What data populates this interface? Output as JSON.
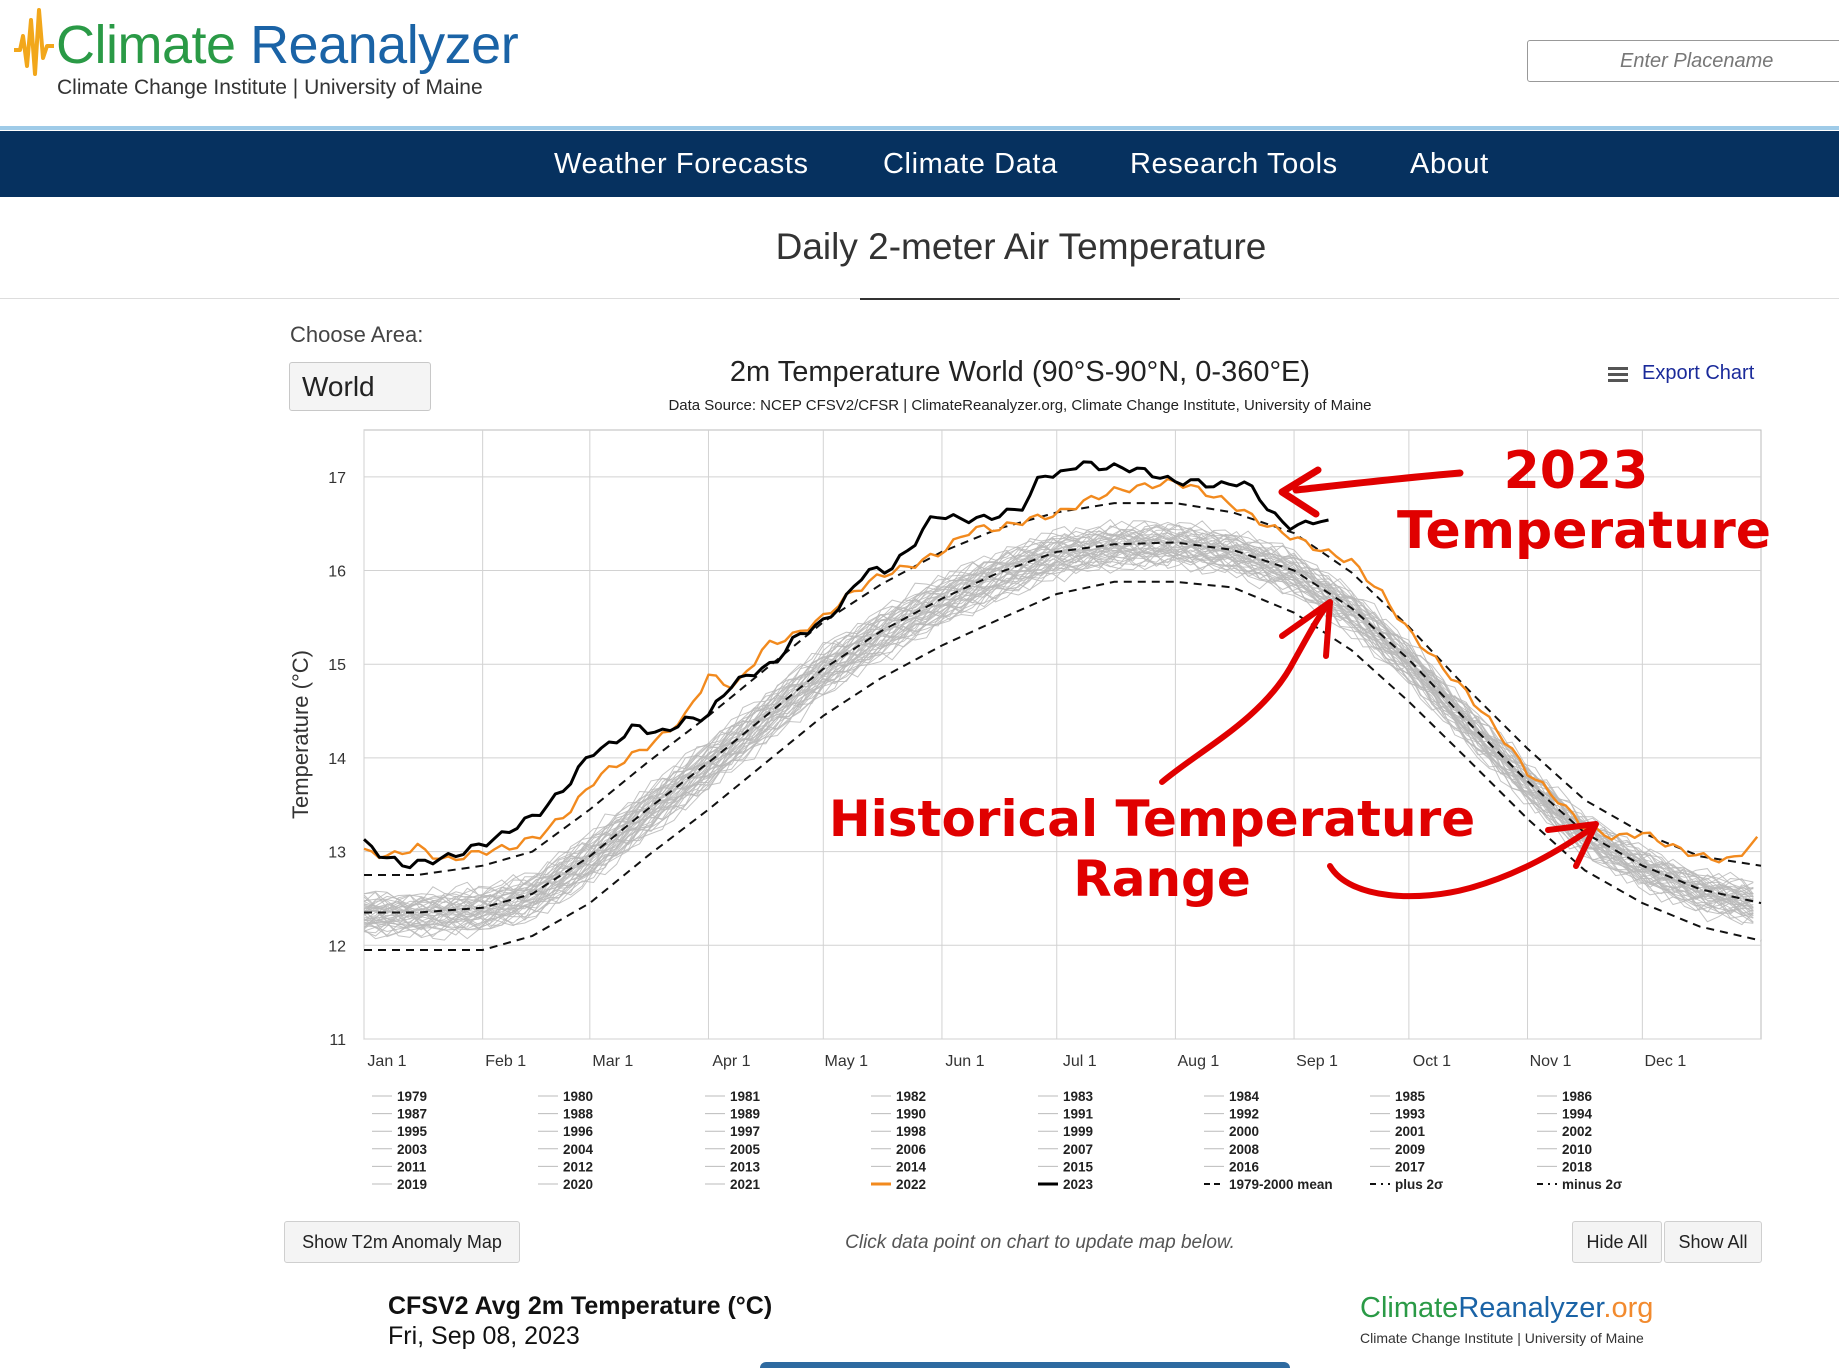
{
  "header": {
    "logo_title_part1": "Climate",
    "logo_title_part2": "Reanalyzer",
    "logo_subtitle": "Climate Change Institute | University of Maine",
    "search_placeholder": "Enter Placename"
  },
  "nav": {
    "items": [
      "Weather Forecasts",
      "Climate Data",
      "Research Tools",
      "About"
    ]
  },
  "page": {
    "title": "Daily 2-meter Air Temperature",
    "choose_area_label": "Choose Area:",
    "area_value": "World",
    "export_label": "Export Chart",
    "show_map_button": "Show T2m Anomaly Map",
    "hint": "Click data point on chart to update map below.",
    "hide_all_button": "Hide All",
    "show_all_button": "Show All",
    "map_title": "CFSV2 Avg 2m Temperature (°C)",
    "map_date": "Fri, Sep 08, 2023",
    "map_logo_part1": "Climate",
    "map_logo_part2": "Reanalyzer",
    "map_logo_part3": ".org",
    "map_logo_subtitle": "Climate Change Institute | University of Maine"
  },
  "colors": {
    "nav_bg": "#06315f",
    "line_2023": "#000000",
    "line_2022": "#f28a1e",
    "history_lines": "#b9b9b9",
    "annotation": "#e00000"
  },
  "annotations": {
    "label_2023_line1": "2023",
    "label_2023_line2": "Temperature",
    "label_hist_line1": "Historical Temperature",
    "label_hist_line2": "Range"
  },
  "chart_data": {
    "type": "line",
    "title": "2m Temperature World (90°S-90°N, 0-360°E)",
    "subtitle": "Data Source: NCEP CFSV2/CFSR | ClimateReanalyzer.org, Climate Change Institute, University of Maine",
    "ylabel": "Temperature (°C)",
    "xlabel": "",
    "ylim": [
      11,
      17.5
    ],
    "yticks": [
      11,
      12,
      13,
      14,
      15,
      16,
      17
    ],
    "xlim": [
      1,
      366
    ],
    "grid": true,
    "months": [
      {
        "label": "Jan 1",
        "day": 1
      },
      {
        "label": "Feb 1",
        "day": 32
      },
      {
        "label": "Mar 1",
        "day": 60
      },
      {
        "label": "Apr 1",
        "day": 91
      },
      {
        "label": "May 1",
        "day": 121
      },
      {
        "label": "Jun 1",
        "day": 152
      },
      {
        "label": "Jul 1",
        "day": 182
      },
      {
        "label": "Aug 1",
        "day": 213
      },
      {
        "label": "Sep 1",
        "day": 244
      },
      {
        "label": "Oct 1",
        "day": 274
      },
      {
        "label": "Nov 1",
        "day": 305
      },
      {
        "label": "Dec 1",
        "day": 335
      }
    ],
    "mean_1979_2000": {
      "x": [
        1,
        15,
        32,
        45,
        60,
        75,
        91,
        106,
        121,
        136,
        152,
        167,
        182,
        197,
        213,
        228,
        244,
        259,
        274,
        289,
        305,
        320,
        335,
        350,
        366
      ],
      "y": [
        12.35,
        12.35,
        12.4,
        12.55,
        12.95,
        13.45,
        13.95,
        14.45,
        14.95,
        15.35,
        15.7,
        15.98,
        16.2,
        16.28,
        16.3,
        16.22,
        16.0,
        15.6,
        15.05,
        14.4,
        13.75,
        13.2,
        12.85,
        12.6,
        12.45
      ]
    },
    "plus_2sigma": {
      "x": [
        1,
        15,
        32,
        45,
        60,
        75,
        91,
        106,
        121,
        136,
        152,
        167,
        182,
        197,
        213,
        228,
        244,
        259,
        274,
        289,
        305,
        320,
        335,
        350,
        366
      ],
      "y": [
        12.75,
        12.75,
        12.85,
        13.0,
        13.45,
        13.95,
        14.45,
        14.95,
        15.45,
        15.85,
        16.2,
        16.45,
        16.62,
        16.72,
        16.72,
        16.62,
        16.4,
        15.98,
        15.4,
        14.75,
        14.1,
        13.55,
        13.2,
        12.95,
        12.85
      ]
    },
    "minus_2sigma": {
      "x": [
        1,
        15,
        32,
        45,
        60,
        75,
        91,
        106,
        121,
        136,
        152,
        167,
        182,
        197,
        213,
        228,
        244,
        259,
        274,
        289,
        305,
        320,
        335,
        350,
        366
      ],
      "y": [
        11.95,
        11.95,
        11.95,
        12.1,
        12.45,
        12.95,
        13.45,
        13.95,
        14.45,
        14.85,
        15.2,
        15.48,
        15.75,
        15.88,
        15.88,
        15.82,
        15.55,
        15.15,
        14.6,
        14.0,
        13.35,
        12.8,
        12.45,
        12.2,
        12.05
      ]
    },
    "series": [
      {
        "name": "2022",
        "x": [
          1,
          8,
          15,
          22,
          32,
          40,
          48,
          55,
          62,
          70,
          78,
          85,
          91,
          98,
          106,
          113,
          121,
          128,
          136,
          144,
          152,
          160,
          167,
          175,
          182,
          190,
          197,
          205,
          213,
          220,
          228,
          236,
          244,
          252,
          259,
          267,
          274,
          282,
          289,
          297,
          305,
          313,
          320,
          328,
          335,
          343,
          350,
          358,
          366
        ],
        "y": [
          13.0,
          12.95,
          13.05,
          12.9,
          13.0,
          13.05,
          13.2,
          13.45,
          13.8,
          14.0,
          14.2,
          14.45,
          14.88,
          14.75,
          15.2,
          15.3,
          15.5,
          15.75,
          15.95,
          16.05,
          16.2,
          16.45,
          16.45,
          16.55,
          16.6,
          16.75,
          16.85,
          16.9,
          16.95,
          16.85,
          16.7,
          16.5,
          16.35,
          16.2,
          16.1,
          15.75,
          15.35,
          15.0,
          14.7,
          14.3,
          13.85,
          13.55,
          13.25,
          13.15,
          13.2,
          13.05,
          12.95,
          12.9,
          13.15
        ]
      },
      {
        "name": "2023",
        "x": [
          1,
          6,
          12,
          18,
          24,
          30,
          36,
          42,
          48,
          55,
          60,
          66,
          72,
          78,
          85,
          91,
          96,
          102,
          108,
          114,
          121,
          126,
          132,
          138,
          144,
          150,
          156,
          162,
          168,
          174,
          178,
          182,
          188,
          194,
          200,
          206,
          212,
          218,
          224,
          230,
          234,
          238,
          244,
          250,
          253
        ],
        "y": [
          13.1,
          12.95,
          12.85,
          12.9,
          12.95,
          13.05,
          13.15,
          13.3,
          13.45,
          13.75,
          14.05,
          14.15,
          14.35,
          14.25,
          14.4,
          14.45,
          14.75,
          14.9,
          15.0,
          15.3,
          15.45,
          15.65,
          16.0,
          16.0,
          16.25,
          16.6,
          16.55,
          16.55,
          16.6,
          16.7,
          17.05,
          17.0,
          17.15,
          17.1,
          17.1,
          17.05,
          16.95,
          16.95,
          16.9,
          16.95,
          16.85,
          16.6,
          16.45,
          16.55,
          16.5
        ]
      }
    ],
    "legend": {
      "historical_years": [
        "1979",
        "1980",
        "1981",
        "1982",
        "1983",
        "1984",
        "1985",
        "1986",
        "1987",
        "1988",
        "1989",
        "1990",
        "1991",
        "1992",
        "1993",
        "1994",
        "1995",
        "1996",
        "1997",
        "1998",
        "1999",
        "2000",
        "2001",
        "2002",
        "2003",
        "2004",
        "2005",
        "2006",
        "2007",
        "2008",
        "2009",
        "2010",
        "2011",
        "2012",
        "2013",
        "2014",
        "2015",
        "2016",
        "2017",
        "2018",
        "2019",
        "2020",
        "2021"
      ],
      "highlight": [
        "2022",
        "2023"
      ],
      "mean_label": "1979-2000 mean",
      "plus_label": "plus 2σ",
      "minus_label": "minus 2σ"
    }
  }
}
